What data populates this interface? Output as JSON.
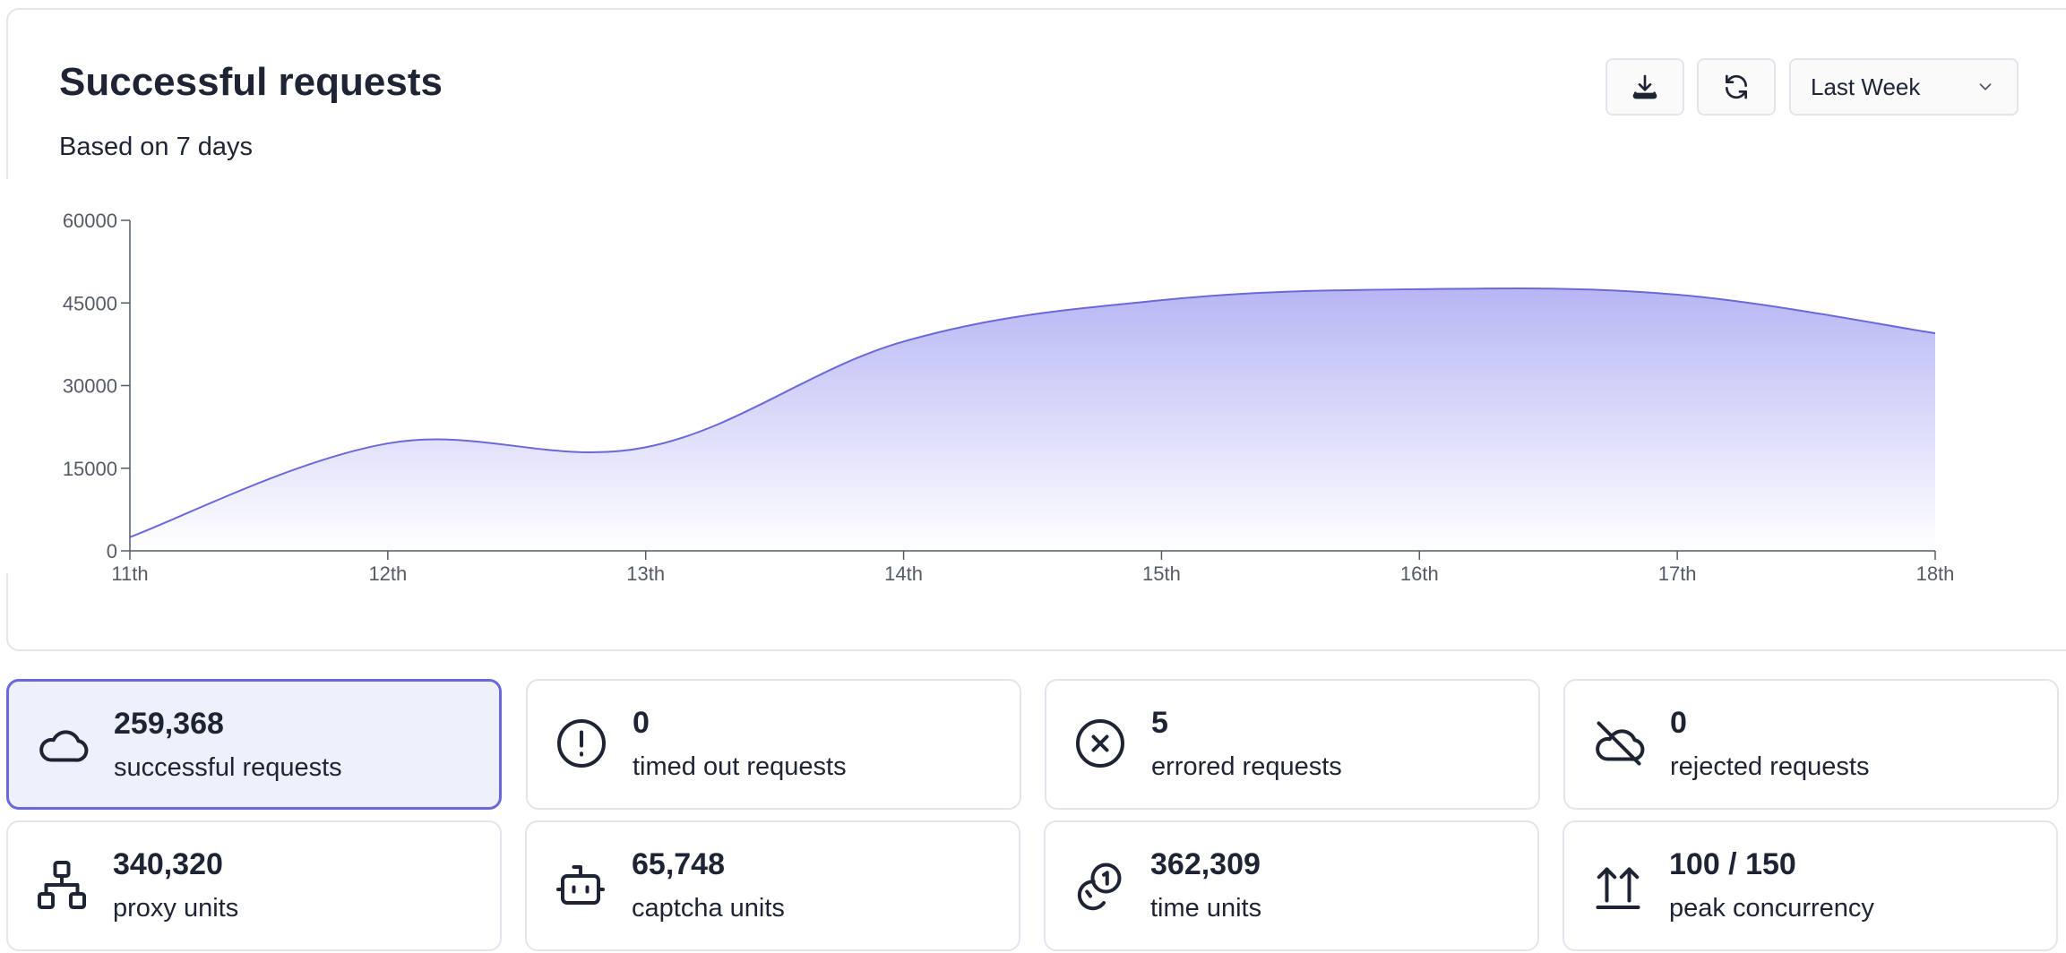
{
  "header": {
    "title": "Successful requests",
    "subtitle": "Based on 7 days",
    "range_select": "Last Week",
    "download_icon": "download-icon",
    "refresh_icon": "refresh-icon",
    "chevron_icon": "chevron-down-icon"
  },
  "chart_data": {
    "type": "area",
    "x": [
      "11th",
      "12th",
      "13th",
      "14th",
      "15th",
      "16th",
      "17th",
      "18th"
    ],
    "series": [
      {
        "values": [
          2500,
          19500,
          18800,
          38000,
          45500,
          47500,
          46500,
          39500
        ]
      }
    ],
    "yticks": [
      "0",
      "15000",
      "30000",
      "45000",
      "60000"
    ],
    "ylim": [
      0,
      60000
    ],
    "grid": false,
    "colors": {
      "line": "#6b68d9",
      "fill_top": "#b7b6f4",
      "fill_bottom": "#ffffff"
    }
  },
  "stats": [
    {
      "value": "259,368",
      "label": "successful requests",
      "icon": "cloud-icon",
      "active": true
    },
    {
      "value": "0",
      "label": "timed out requests",
      "icon": "alert-circle-icon",
      "active": false
    },
    {
      "value": "5",
      "label": "errored requests",
      "icon": "x-circle-icon",
      "active": false
    },
    {
      "value": "0",
      "label": "rejected requests",
      "icon": "cloud-off-icon",
      "active": false
    },
    {
      "value": "340,320",
      "label": "proxy units",
      "icon": "network-icon",
      "active": false
    },
    {
      "value": "65,748",
      "label": "captcha units",
      "icon": "robot-icon",
      "active": false
    },
    {
      "value": "362,309",
      "label": "time units",
      "icon": "coins-icon",
      "active": false
    },
    {
      "value": "100 / 150",
      "label": "peak concurrency",
      "icon": "arrows-up-icon",
      "active": false
    }
  ],
  "colors": {
    "accent": "#6b68d9",
    "active_bg": "#eef0fc",
    "border": "#e3e5ea",
    "text": "#1e2433"
  }
}
